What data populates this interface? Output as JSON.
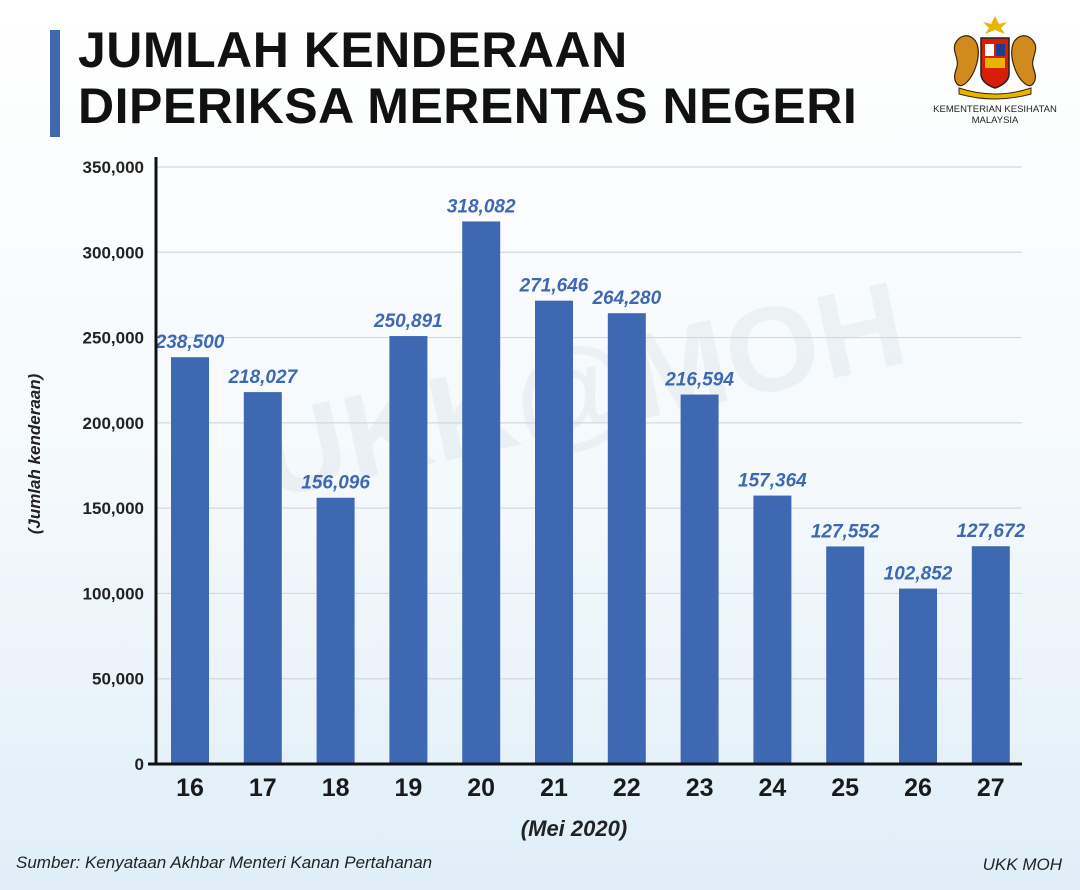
{
  "header": {
    "title_line1": "JUMLAH KENDERAAN",
    "title_line2": "DIPERIKSA MERENTAS NEGERI"
  },
  "logo": {
    "icon": "malaysia-coat-of-arms-icon",
    "line1": "KEMENTERIAN KESIHATAN",
    "line2": "MALAYSIA"
  },
  "watermark": "UKK@MOH",
  "footer": {
    "source": "Sumber: Kenyataan Akhbar Menteri Kanan Pertahanan",
    "credit": "UKK MOH"
  },
  "colors": {
    "bar": "#3f68b3",
    "value_label": "#3f68b3",
    "accent": "#3f68b3"
  },
  "chart_data": {
    "type": "bar",
    "title": "JUMLAH KENDERAAN DIPERIKSA MERENTAS NEGERI",
    "xlabel": "(Mei 2020)",
    "ylabel": "(Jumlah kenderaan)",
    "ylim": [
      0,
      350000
    ],
    "yticks": [
      0,
      50000,
      100000,
      150000,
      200000,
      250000,
      300000,
      350000
    ],
    "ytick_labels": [
      "0",
      "50,000",
      "100,000",
      "150,000",
      "200,000",
      "250,000",
      "300,000",
      "350,000"
    ],
    "grid": true,
    "categories": [
      "16",
      "17",
      "18",
      "19",
      "20",
      "21",
      "22",
      "23",
      "24",
      "25",
      "26",
      "27"
    ],
    "values": [
      238500,
      218027,
      156096,
      250891,
      318082,
      271646,
      264280,
      216594,
      157364,
      127552,
      102852,
      127672
    ],
    "value_labels": [
      "238,500",
      "218,027",
      "156,096",
      "250,891",
      "318,082",
      "271,646",
      "264,280",
      "216,594",
      "157,364",
      "127,552",
      "102,852",
      "127,672"
    ]
  }
}
